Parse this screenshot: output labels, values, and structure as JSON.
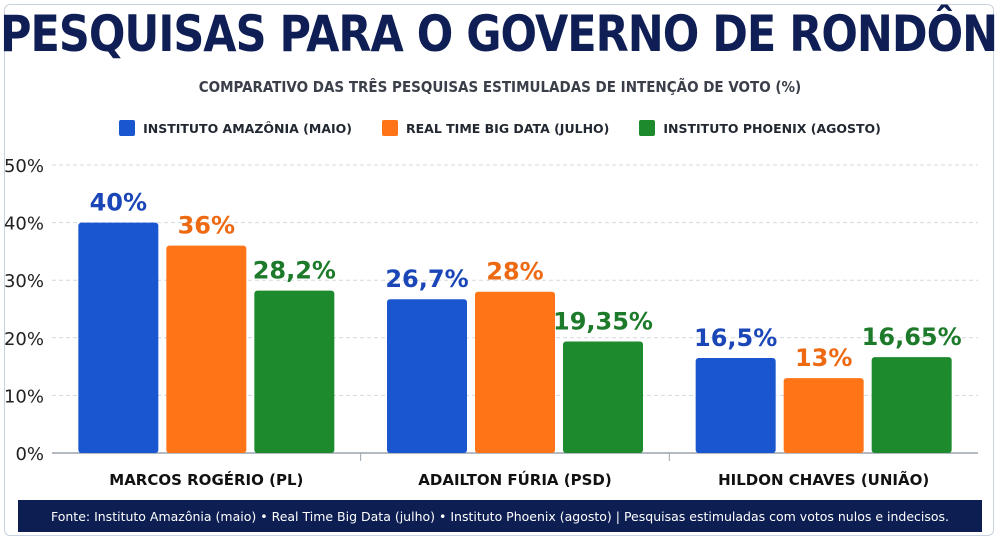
{
  "header": {
    "title": "PESQUISAS PARA O GOVERNO DE RONDÔNIA",
    "subtitle": "COMPARATIVO DAS TRÊS PESQUISAS ESTIMULADAS DE INTENÇÃO DE VOTO (%)"
  },
  "legend": [
    {
      "label": "INSTITUTO AMAZÔNIA (MAIO)",
      "color": "#1a56cf"
    },
    {
      "label": "REAL TIME BIG DATA (JULHO)",
      "color": "#ff7417"
    },
    {
      "label": "INSTITUTO PHOENIX (AGOSTO)",
      "color": "#1e8a2e"
    }
  ],
  "chart_data": {
    "type": "bar",
    "categories": [
      "MARCOS ROGÉRIO (PL)",
      "ADAILTON FÚRIA (PSD)",
      "HILDON CHAVES (UNIÃO)"
    ],
    "series": [
      {
        "name": "INSTITUTO AMAZÔNIA (MAIO)",
        "values": [
          40,
          26.7,
          16.5
        ],
        "labels": [
          "40%",
          "26,7%",
          "16,5%"
        ],
        "color": "#1a56cf",
        "label_color": "#1b46b8"
      },
      {
        "name": "REAL TIME BIG DATA (JULHO)",
        "values": [
          36,
          28,
          13
        ],
        "labels": [
          "36%",
          "28%",
          "13%"
        ],
        "color": "#ff7417",
        "label_color": "#ee6a12"
      },
      {
        "name": "INSTITUTO PHOENIX (AGOSTO)",
        "values": [
          28.2,
          19.35,
          16.65
        ],
        "labels": [
          "28,2%",
          "19,35%",
          "16,65%"
        ],
        "color": "#1e8a2e",
        "label_color": "#1c7a2a"
      }
    ],
    "yticks": [
      "0%",
      "10%",
      "20%",
      "30%",
      "40%",
      "50%"
    ],
    "ylim": [
      0,
      50
    ],
    "grid": true,
    "legend_position": "top-center"
  },
  "footer": {
    "text": "Fonte: Instituto Amazônia (maio) • Real Time Big Data (julho) • Instituto Phoenix (agosto) | Pesquisas estimuladas com votos nulos e indecisos."
  }
}
